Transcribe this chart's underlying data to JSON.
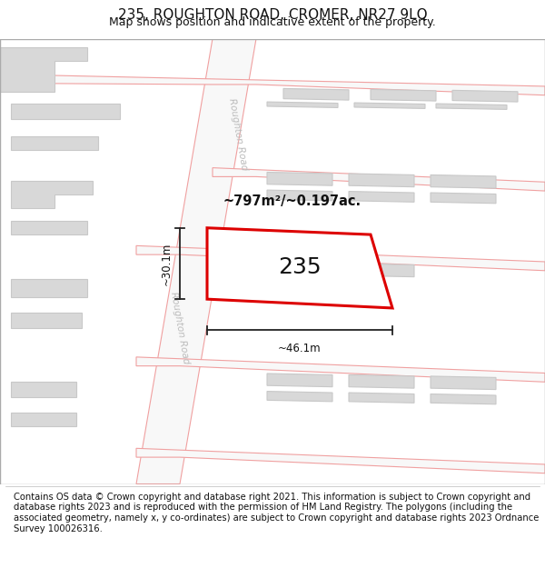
{
  "title": "235, ROUGHTON ROAD, CROMER, NR27 9LQ",
  "subtitle": "Map shows position and indicative extent of the property.",
  "footer": "Contains OS data © Crown copyright and database right 2021. This information is subject to Crown copyright and database rights 2023 and is reproduced with the permission of HM Land Registry. The polygons (including the associated geometry, namely x, y co-ordinates) are subject to Crown copyright and database rights 2023 Ordnance Survey 100026316.",
  "area_label": "~797m²/~0.197ac.",
  "number_label": "235",
  "width_label": "~46.1m",
  "height_label": "~30.1m",
  "road_label_1": "Roughton Road",
  "road_label_2": "Roughton Road",
  "plot_color": "#dd0000",
  "road_fill": "#f8f8f8",
  "road_stroke": "#f0a0a0",
  "building_fill": "#d8d8d8",
  "building_stroke": "#c8c8c8",
  "dim_color": "#222222",
  "title_fontsize": 11,
  "subtitle_fontsize": 9,
  "footer_fontsize": 7.2,
  "map_bg": "#ffffff"
}
